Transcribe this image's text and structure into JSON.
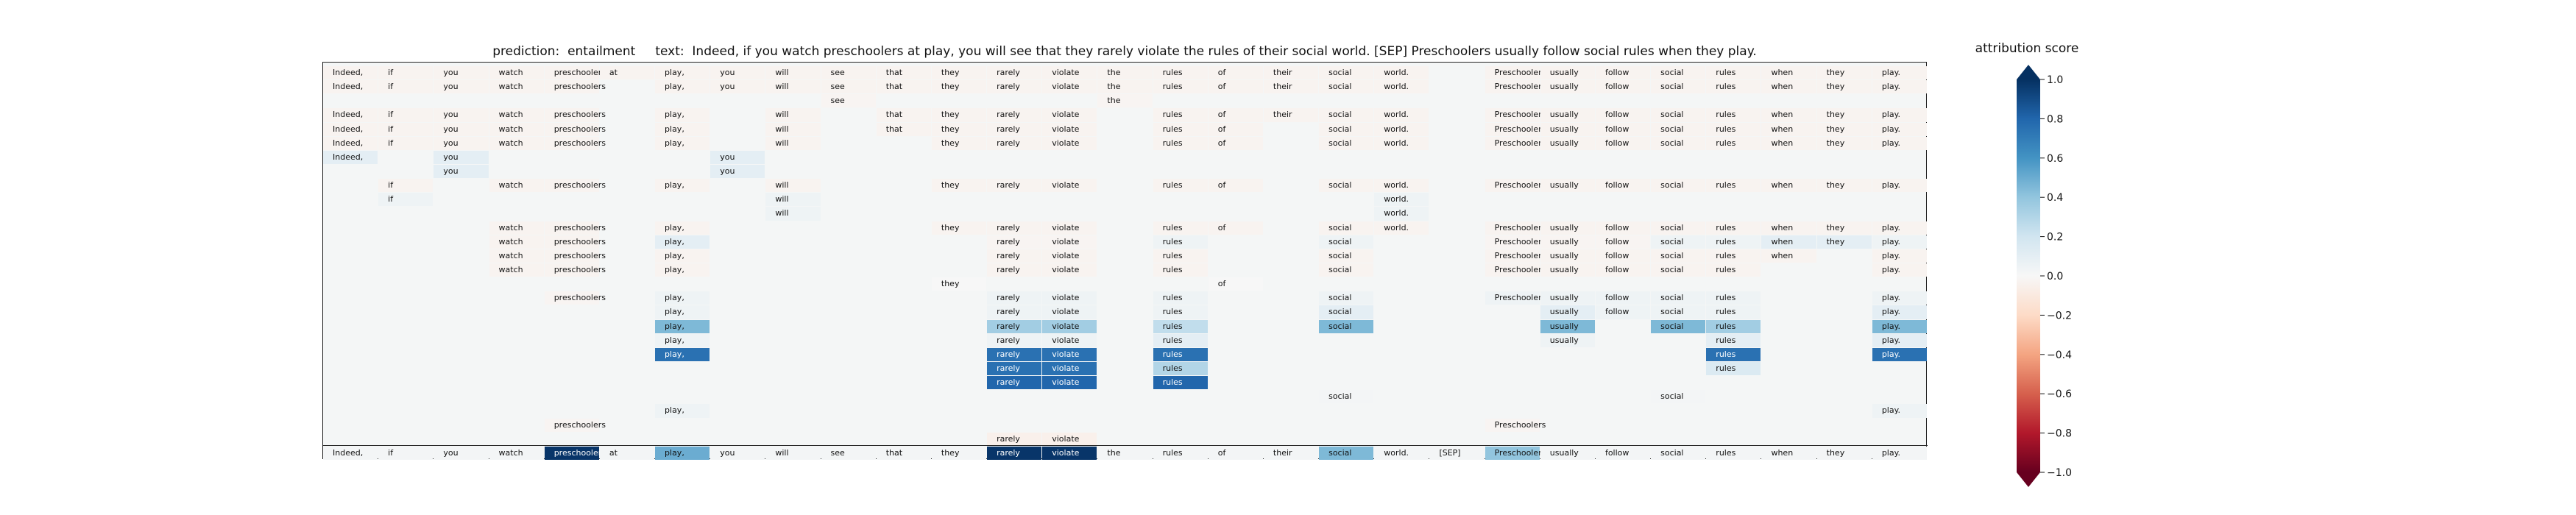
{
  "title": "prediction:  entailment     text:  Indeed, if you watch preschoolers at play, you will see that they rarely violate the rules of their social world. [SEP] Preschoolers usually follow social rules when they play.",
  "colorbar": {
    "label": "attribution score",
    "ticks": [
      "1.0",
      "0.8",
      "0.6",
      "0.4",
      "0.2",
      "0.0",
      "−0.2",
      "−0.4",
      "−0.6",
      "−0.8",
      "−1.0"
    ]
  },
  "chart_data": {
    "type": "heatmap",
    "title": "prediction:  entailment     text:  Indeed, if you watch preschoolers at play, you will see that they rarely violate the rules of their social world. [SEP] Preschoolers usually follow social rules when they play.",
    "colormap": "RdBu",
    "vmin": -1.0,
    "vmax": 1.0,
    "tokens": [
      "Indeed,",
      "if",
      "you",
      "watch",
      "preschoolers",
      "at",
      "play,",
      "you",
      "will",
      "see",
      "that",
      "they",
      "rarely",
      "violate",
      "the",
      "rules",
      "of",
      "their",
      "social",
      "world.",
      "[SEP]",
      "Preschoolers",
      "usually",
      "follow",
      "social",
      "rules",
      "when",
      "they",
      "play."
    ],
    "rows": [
      {
        "tokens": [
          0,
          1,
          2,
          3,
          4,
          5,
          6,
          7,
          8,
          9,
          10,
          11,
          12,
          13,
          14,
          15,
          16,
          17,
          18,
          19,
          21,
          22,
          23,
          24,
          25,
          26,
          27,
          28
        ],
        "values": [
          -0.03,
          -0.03,
          -0.03,
          -0.03,
          -0.03,
          -0.03,
          -0.03,
          -0.03,
          -0.03,
          -0.03,
          -0.03,
          -0.03,
          -0.03,
          -0.03,
          -0.03,
          -0.03,
          -0.03,
          -0.03,
          -0.03,
          -0.03,
          -0.03,
          -0.03,
          -0.03,
          -0.03,
          -0.03,
          -0.03,
          -0.03,
          -0.03
        ]
      },
      {
        "tokens": [
          0,
          1,
          2,
          3,
          4,
          6,
          7,
          8,
          9,
          10,
          11,
          12,
          13,
          14,
          15,
          16,
          17,
          18,
          19,
          21,
          22,
          23,
          24,
          25,
          26,
          27,
          28
        ],
        "values": [
          -0.03,
          -0.03,
          -0.03,
          -0.03,
          -0.03,
          -0.03,
          -0.03,
          -0.03,
          -0.03,
          -0.03,
          -0.03,
          -0.03,
          -0.03,
          -0.03,
          -0.03,
          -0.03,
          -0.03,
          -0.03,
          -0.03,
          -0.03,
          -0.03,
          -0.03,
          -0.03,
          -0.03,
          -0.03,
          -0.03,
          -0.03
        ]
      },
      {
        "tokens": [
          9,
          14
        ],
        "values": [
          -0.02,
          -0.02
        ]
      },
      {
        "tokens": [
          0,
          1,
          2,
          3,
          4,
          6,
          8,
          10,
          11,
          12,
          13,
          15,
          16,
          17,
          18,
          19,
          21,
          22,
          23,
          24,
          25,
          26,
          27,
          28
        ],
        "values": [
          -0.03,
          -0.03,
          -0.03,
          -0.03,
          -0.03,
          -0.03,
          -0.03,
          -0.03,
          -0.03,
          -0.03,
          -0.03,
          -0.03,
          -0.03,
          -0.03,
          -0.03,
          -0.03,
          -0.03,
          -0.03,
          -0.03,
          -0.03,
          -0.03,
          -0.03,
          -0.03,
          -0.03
        ]
      },
      {
        "tokens": [
          0,
          1,
          2,
          3,
          4,
          6,
          8,
          10,
          11,
          12,
          13,
          15,
          16,
          18,
          19,
          21,
          22,
          23,
          24,
          25,
          26,
          27,
          28
        ],
        "values": [
          -0.03,
          -0.03,
          -0.03,
          -0.03,
          -0.03,
          -0.03,
          -0.03,
          -0.03,
          -0.03,
          -0.03,
          -0.03,
          -0.03,
          -0.03,
          -0.03,
          -0.03,
          -0.03,
          -0.03,
          -0.03,
          -0.03,
          -0.03,
          -0.03,
          -0.03,
          -0.03
        ]
      },
      {
        "tokens": [
          0,
          1,
          2,
          3,
          4,
          6,
          8,
          11,
          12,
          13,
          15,
          16,
          18,
          19,
          21,
          22,
          23,
          24,
          25,
          26,
          27,
          28
        ],
        "values": [
          -0.03,
          -0.03,
          -0.03,
          -0.03,
          -0.03,
          -0.03,
          -0.03,
          -0.03,
          -0.03,
          -0.03,
          -0.03,
          -0.03,
          -0.03,
          -0.03,
          -0.03,
          -0.03,
          -0.03,
          -0.03,
          -0.03,
          -0.03,
          -0.03,
          -0.03
        ]
      },
      {
        "tokens": [
          0,
          2,
          7
        ],
        "values": [
          0.1,
          0.1,
          0.1
        ]
      },
      {
        "tokens": [
          2,
          7
        ],
        "values": [
          0.1,
          0.1
        ]
      },
      {
        "tokens": [
          1,
          3,
          4,
          6,
          8,
          11,
          12,
          13,
          15,
          16,
          18,
          19,
          21,
          22,
          23,
          24,
          25,
          26,
          27,
          28
        ],
        "values": [
          -0.03,
          -0.03,
          -0.03,
          -0.03,
          -0.03,
          -0.03,
          -0.03,
          -0.03,
          -0.03,
          -0.03,
          -0.03,
          -0.03,
          -0.03,
          -0.03,
          -0.03,
          -0.03,
          -0.03,
          -0.03,
          -0.03,
          -0.03
        ]
      },
      {
        "tokens": [
          1,
          8,
          19
        ],
        "values": [
          0.05,
          0.05,
          0.05
        ]
      },
      {
        "tokens": [
          8,
          19
        ],
        "values": [
          0.05,
          0.05
        ]
      },
      {
        "tokens": [
          3,
          4,
          6,
          11,
          12,
          13,
          15,
          16,
          18,
          19,
          21,
          22,
          23,
          24,
          25,
          26,
          27,
          28
        ],
        "values": [
          -0.03,
          -0.03,
          -0.03,
          -0.03,
          -0.03,
          -0.03,
          -0.03,
          -0.03,
          -0.03,
          -0.03,
          -0.03,
          -0.03,
          -0.03,
          -0.03,
          -0.03,
          -0.03,
          -0.03,
          -0.03
        ]
      },
      {
        "tokens": [
          3,
          4,
          6,
          12,
          13,
          15,
          18,
          21,
          22,
          23,
          24,
          25,
          26,
          27,
          28
        ],
        "values": [
          -0.03,
          -0.03,
          0.1,
          -0.02,
          -0.02,
          0.05,
          0.05,
          -0.02,
          -0.02,
          -0.02,
          0.05,
          0.05,
          0.1,
          0.1,
          0.05
        ]
      },
      {
        "tokens": [
          3,
          4,
          6,
          12,
          13,
          15,
          18,
          21,
          22,
          23,
          24,
          25,
          26,
          28
        ],
        "values": [
          -0.03,
          -0.03,
          -0.03,
          -0.03,
          -0.03,
          -0.03,
          -0.03,
          -0.03,
          -0.03,
          -0.03,
          -0.03,
          -0.03,
          -0.03,
          -0.03
        ]
      },
      {
        "tokens": [
          3,
          4,
          6,
          12,
          13,
          15,
          18,
          21,
          22,
          23,
          24,
          25,
          28
        ],
        "values": [
          -0.03,
          -0.03,
          -0.03,
          -0.03,
          -0.03,
          -0.03,
          -0.03,
          -0.03,
          -0.03,
          -0.03,
          -0.03,
          -0.03,
          -0.03
        ]
      },
      {
        "tokens": [
          11,
          16
        ],
        "values": [
          0.0,
          0.0
        ]
      },
      {
        "tokens": [
          4,
          6,
          12,
          13,
          15,
          18,
          21,
          22,
          23,
          24,
          25,
          28
        ],
        "values": [
          -0.02,
          0.05,
          0.05,
          0.05,
          0.05,
          0.05,
          0.05,
          0.05,
          0.05,
          0.05,
          0.05,
          0.05
        ]
      },
      {
        "tokens": [
          6,
          12,
          13,
          15,
          18,
          22,
          23,
          24,
          25,
          28
        ],
        "values": [
          0.05,
          0.05,
          0.05,
          0.05,
          0.1,
          0.1,
          0.05,
          0.05,
          0.05,
          0.1
        ]
      },
      {
        "tokens": [
          6,
          12,
          13,
          15,
          18,
          22,
          24,
          25,
          28
        ],
        "values": [
          0.45,
          0.35,
          0.35,
          0.25,
          0.45,
          0.45,
          0.45,
          0.35,
          0.45
        ]
      },
      {
        "tokens": [
          6,
          12,
          13,
          15,
          22,
          25,
          28
        ],
        "values": [
          0.05,
          0.05,
          0.05,
          0.1,
          0.05,
          0.1,
          0.1
        ]
      },
      {
        "tokens": [
          6,
          12,
          13,
          15,
          25,
          28
        ],
        "values": [
          0.75,
          0.75,
          0.75,
          0.75,
          0.75,
          0.75
        ]
      },
      {
        "tokens": [
          12,
          13,
          15,
          25
        ],
        "values": [
          0.75,
          0.75,
          0.3,
          0.15
        ]
      },
      {
        "tokens": [
          12,
          13,
          15
        ],
        "values": [
          0.8,
          0.8,
          0.8
        ]
      },
      {
        "tokens": [
          18,
          24
        ],
        "values": [
          0.02,
          0.02
        ]
      },
      {
        "tokens": [
          6,
          28
        ],
        "values": [
          0.05,
          0.05
        ]
      },
      {
        "tokens": [
          4,
          21
        ],
        "values": [
          -0.02,
          -0.02
        ]
      },
      {
        "tokens": [
          12,
          13
        ],
        "values": [
          -0.05,
          -0.05
        ]
      },
      {
        "tokens": [
          0,
          1,
          2,
          3,
          4,
          5,
          6,
          7,
          8,
          9,
          10,
          11,
          12,
          13,
          14,
          15,
          16,
          17,
          18,
          19,
          20,
          21,
          22,
          23,
          24,
          25,
          26,
          27,
          28
        ],
        "values": [
          0.02,
          0.02,
          0.02,
          0.02,
          0.98,
          0.02,
          0.5,
          0.02,
          0.02,
          0.02,
          0.02,
          0.02,
          0.98,
          0.98,
          0.02,
          0.02,
          0.02,
          0.02,
          0.45,
          0.02,
          0.02,
          0.4,
          0.02,
          0.02,
          0.02,
          0.02,
          0.02,
          0.02,
          0.02
        ]
      }
    ]
  }
}
